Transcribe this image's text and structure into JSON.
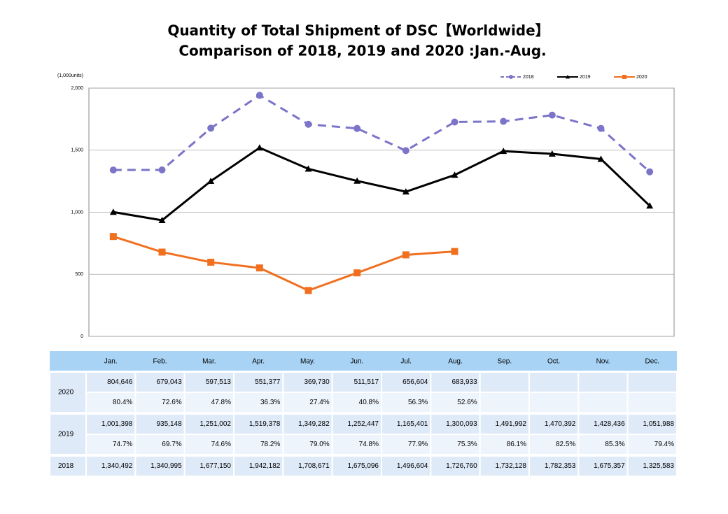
{
  "chart_data": {
    "type": "line",
    "title": "Quantity of Total Shipment of DSC【Worldwide】",
    "subtitle": "Comparison of 2018, 2019 and 2020 :Jan.-Aug.",
    "y_label": "(1,000units)",
    "categories": [
      "Jan.",
      "Feb.",
      "Mar.",
      "Apr.",
      "May.",
      "Jun.",
      "Jul.",
      "Aug.",
      "Sep.",
      "Oct.",
      "Nov.",
      "Dec."
    ],
    "ylim": [
      0,
      2000
    ],
    "yticks": [
      0,
      500,
      {
        "value": 1000,
        "label": "1,000"
      },
      {
        "value": 1500,
        "label": "1,500"
      },
      {
        "value": 2000,
        "label": "2,000"
      }
    ],
    "grid": true,
    "legend": "top-right",
    "series": [
      {
        "name": "2018",
        "color": "#7b74c9",
        "dashed": true,
        "marker": "circle",
        "values": [
          1340.492,
          1340.995,
          1677.15,
          1942.182,
          1708.671,
          1675.096,
          1496.604,
          1726.76,
          1732.128,
          1782.353,
          1675.357,
          1325.583
        ],
        "value_labels": [
          "1,340,492",
          "1,340,995",
          "1,677,150",
          "1,942,182",
          "1,708,671",
          "1,675,096",
          "1,496,604",
          "1,726,760",
          "1,732,128",
          "1,782,353",
          "1,675,357",
          "1,325,583"
        ]
      },
      {
        "name": "2019",
        "color": "#000000",
        "dashed": false,
        "marker": "triangle",
        "values": [
          1001.398,
          935.148,
          1251.002,
          1519.378,
          1349.282,
          1252.447,
          1165.401,
          1300.093,
          1491.992,
          1470.392,
          1428.436,
          1051.988
        ],
        "value_labels": [
          "1,001,398",
          "935,148",
          "1,251,002",
          "1,519,378",
          "1,349,282",
          "1,252,447",
          "1,165,401",
          "1,300,093",
          "1,491,992",
          "1,470,392",
          "1,428,436",
          "1,051,988"
        ],
        "ratio_labels": [
          "74.7%",
          "69.7%",
          "74.6%",
          "78.2%",
          "79.0%",
          "74.8%",
          "77.9%",
          "75.3%",
          "86.1%",
          "82.5%",
          "85.3%",
          "79.4%"
        ]
      },
      {
        "name": "2020",
        "color": "#f07020",
        "dashed": false,
        "marker": "square",
        "values": [
          804.646,
          679.043,
          597.513,
          551.377,
          369.73,
          511.517,
          656.604,
          683.933,
          null,
          null,
          null,
          null
        ],
        "value_labels": [
          "804,646",
          "679,043",
          "597,513",
          "551,377",
          "369,730",
          "511,517",
          "656,604",
          "683,933",
          null,
          null,
          null,
          null
        ],
        "ratio_labels": [
          "80.4%",
          "72.6%",
          "47.8%",
          "36.3%",
          "27.4%",
          "40.8%",
          "56.3%",
          "52.6%",
          null,
          null,
          null,
          null
        ]
      }
    ]
  }
}
